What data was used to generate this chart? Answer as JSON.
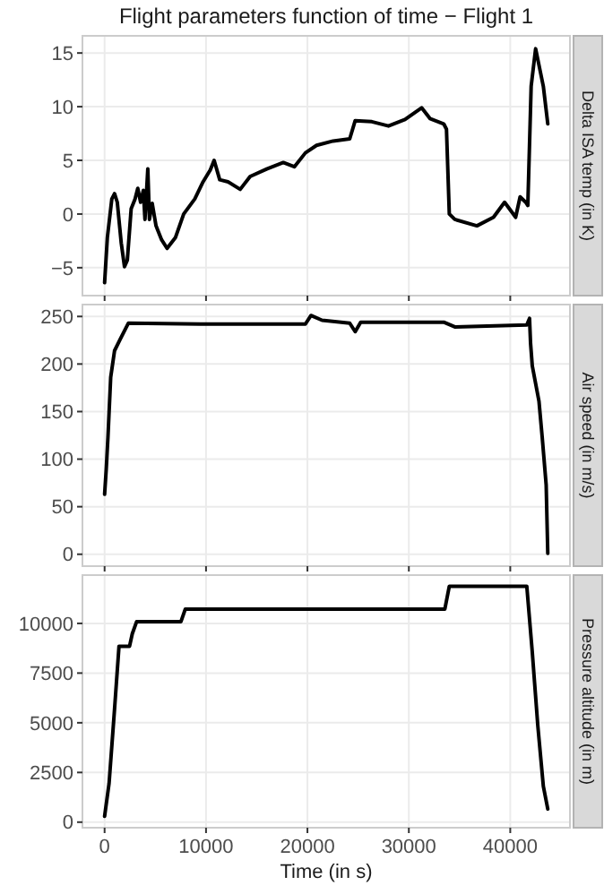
{
  "chart_data": [
    {
      "type": "line",
      "title": "Flight parameters function of time − Flight 1",
      "ylabel": "Delta ISA temp (in K)",
      "xlim": [
        -2185,
        45885
      ],
      "xticks": [
        0,
        10000,
        20000,
        30000,
        40000
      ],
      "ylim": [
        -7.6,
        16.6
      ],
      "yticks": [
        {
          "value": -5,
          "label": "−5"
        },
        0,
        5,
        10,
        15
      ],
      "tick_labels": "y",
      "grid": true,
      "line_style": "solid",
      "marker": "none",
      "series": [
        {
          "color": "#000000",
          "x": [
            0,
            270,
            710,
            980,
            1250,
            1640,
            1960,
            2240,
            2620,
            3000,
            3270,
            3550,
            3820,
            3980,
            4260,
            4420,
            4690,
            5070,
            5620,
            6160,
            6980,
            7800,
            8890,
            9710,
            10420,
            10800,
            11350,
            12170,
            13370,
            14350,
            15990,
            17620,
            18710,
            19800,
            20900,
            22530,
            24170,
            24710,
            26350,
            27990,
            29620,
            31260,
            32080,
            33440,
            33710,
            33990,
            34530,
            36710,
            38350,
            39440,
            40530,
            40970,
            41520,
            41730,
            42060,
            42500,
            43260,
            43700
          ],
          "values": [
            -6.4,
            -2.2,
            1.4,
            1.9,
            1.1,
            -2.7,
            -4.9,
            -4.3,
            0.5,
            1.4,
            2.4,
            1.1,
            2.2,
            -0.5,
            4.2,
            -0.5,
            1.0,
            -1.1,
            -2.4,
            -3.2,
            -2.2,
            0,
            1.4,
            3.0,
            4.1,
            5.0,
            3.2,
            3.0,
            2.3,
            3.5,
            4.2,
            4.8,
            4.4,
            5.7,
            6.4,
            6.8,
            7.0,
            8.7,
            8.6,
            8.2,
            8.8,
            9.9,
            8.9,
            8.4,
            7.9,
            0,
            -0.5,
            -1.1,
            -0.3,
            1.1,
            -0.3,
            1.6,
            1.1,
            0.8,
            11.9,
            15.4,
            11.9,
            8.4
          ]
        }
      ]
    },
    {
      "type": "line",
      "ylabel": "Air speed (in m/s)",
      "xlim": [
        -2185,
        45885
      ],
      "xticks": [
        0,
        10000,
        20000,
        30000,
        40000
      ],
      "ylim": [
        -12.5,
        262.5
      ],
      "yticks": [
        0,
        50,
        100,
        150,
        200,
        250
      ],
      "tick_labels": "y",
      "grid": true,
      "line_style": "solid",
      "marker": "none",
      "series": [
        {
          "color": "#000000",
          "x": [
            0,
            160,
            330,
            600,
            980,
            1530,
            2350,
            9450,
            19800,
            20350,
            21440,
            24170,
            24710,
            25250,
            33440,
            34530,
            41630,
            41900,
            42000,
            42170,
            42830,
            43150,
            43540,
            43700
          ],
          "values": [
            63,
            89,
            123,
            186,
            214,
            226,
            243,
            242,
            242,
            251,
            246,
            243,
            234,
            244,
            244,
            239,
            241,
            248,
            222,
            198,
            161,
            123,
            73,
            1
          ]
        }
      ]
    },
    {
      "type": "line",
      "ylabel": "Pressure altitude (in m)",
      "xlabel": "Time (in s)",
      "xlim": [
        -2185,
        45885
      ],
      "xticks": [
        0,
        10000,
        20000,
        30000,
        40000
      ],
      "ylim": [
        -280,
        12430
      ],
      "yticks": [
        0,
        2500,
        5000,
        7500,
        10000
      ],
      "grid": true,
      "line_style": "solid",
      "marker": "none",
      "series": [
        {
          "color": "#000000",
          "x": [
            0,
            440,
            980,
            1420,
            2460,
            2730,
            3160,
            7530,
            7960,
            33550,
            33990,
            41630,
            42170,
            42720,
            43260,
            43700
          ],
          "values": [
            290,
            1950,
            5690,
            8850,
            8850,
            9480,
            10090,
            10090,
            10720,
            10720,
            11870,
            11870,
            8560,
            4830,
            1810,
            660
          ]
        }
      ]
    }
  ]
}
